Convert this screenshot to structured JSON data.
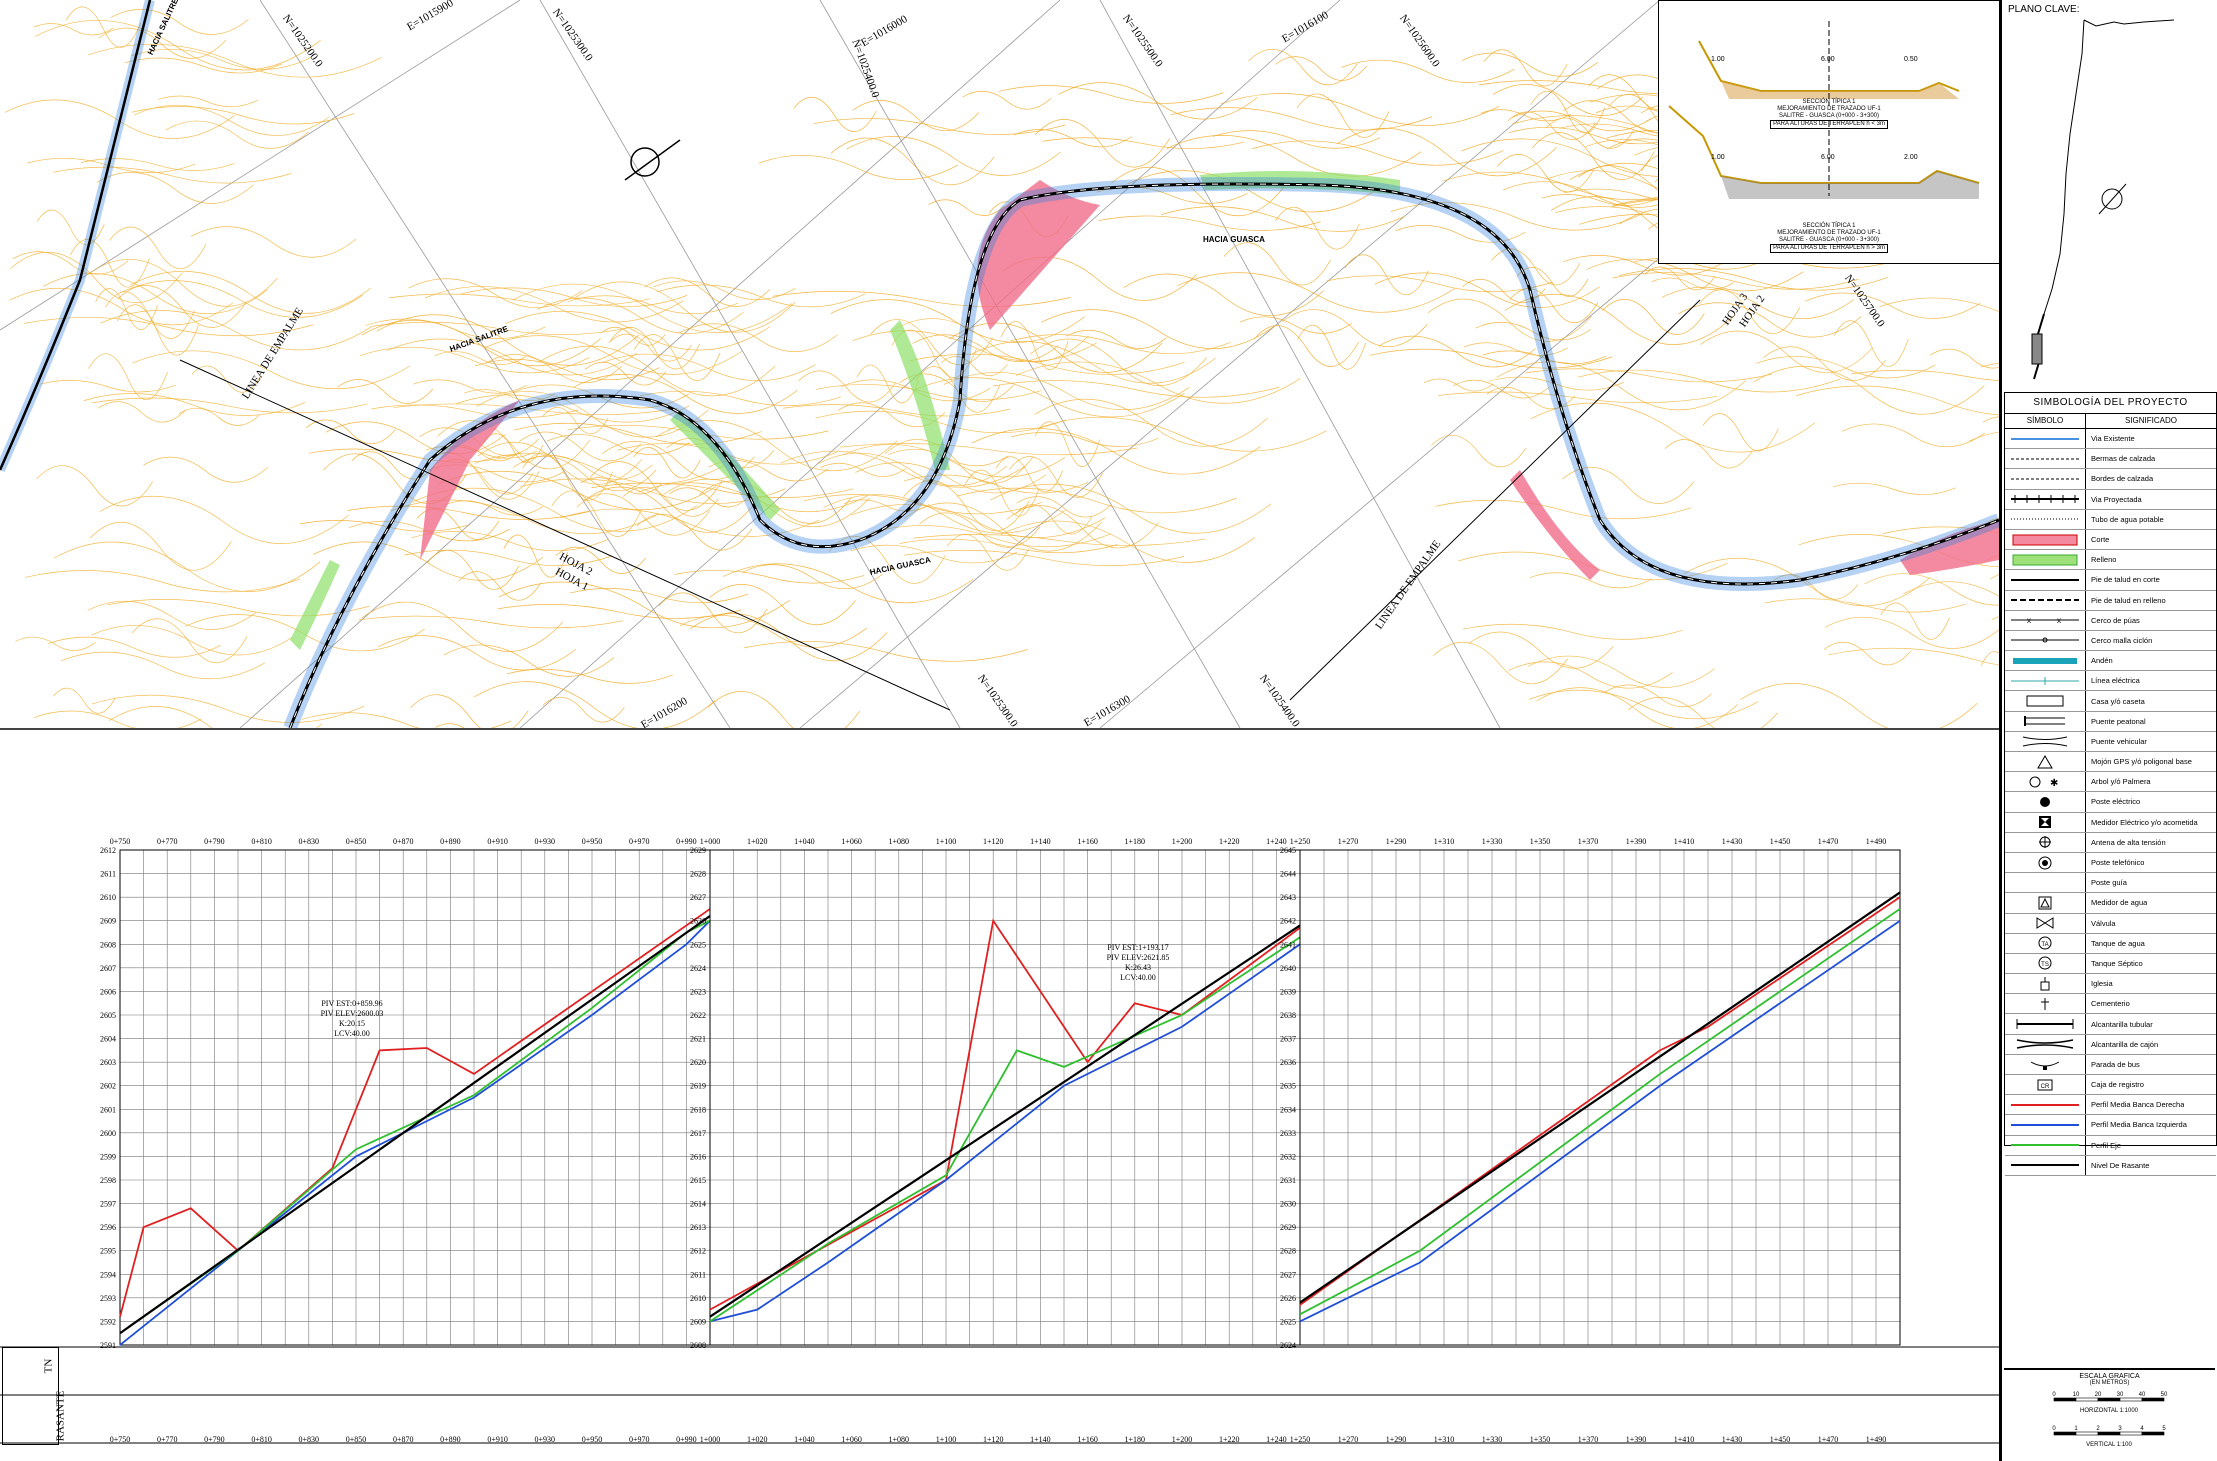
{
  "plan": {
    "coordinates": [
      "N=1025200.0",
      "E=1015900",
      "N=1025300.0",
      "E=1016000",
      "N=1025400.0",
      "N=1025500.0",
      "E=1016100",
      "N=1025600.0",
      "N=1025700.0",
      "E=1016200",
      "N=1025300.0",
      "E=1016300",
      "N=1025400.0"
    ],
    "direction_labels": [
      "HACIA SALITRE",
      "HACIA GUASCA",
      "HACIA GUASCA",
      "HACIA SALITRE"
    ],
    "sheet_labels": [
      "LINEA DE EMPALME",
      "HOJA 2",
      "HOJA 1",
      "LINEA DE EMPALME",
      "HOJA 3",
      "HOJA 2"
    ]
  },
  "sections": {
    "sec1_caption": [
      "SECCIÓN TÍPICA 1",
      "MEJORAMIENTO DE TRAZADO UF-1",
      "SALITRE - GUASCA (0+000 - 3+300)",
      "PARA ALTURAS DE TERRAPLEN h < 3m"
    ],
    "sec2_caption": [
      "SECCIÓN TÍPICA 1",
      "MEJORAMIENTO DE TRAZADO UF-1",
      "SALITRE - GUASCA (0+000 - 3+300)",
      "PARA ALTURAS DE TERRAPLEN h > 3m"
    ],
    "dims1": [
      "1.00",
      "6.00",
      "0.50"
    ],
    "dims2": [
      "1.00",
      "6.00",
      "2.00"
    ]
  },
  "sidebar": {
    "plano_clave": "PLANO CLAVE:",
    "legend_title": "SIMBOLOGÍA DEL PROYECTO",
    "col_symbol": "SÍMBOLO",
    "col_meaning": "SIGNIFICADO",
    "items": [
      {
        "label": "Via Existente",
        "sym": "line-blue"
      },
      {
        "label": "Bermas de calzada",
        "sym": "dash"
      },
      {
        "label": "Bordes de calzada",
        "sym": "dash"
      },
      {
        "label": "Via Proyectada",
        "sym": "rail"
      },
      {
        "label": "Tubo de agua potable",
        "sym": "dots"
      },
      {
        "label": "Corte",
        "sym": "corte"
      },
      {
        "label": "Relleno",
        "sym": "relleno"
      },
      {
        "label": "Pie de talud en corte",
        "sym": "line-black"
      },
      {
        "label": "Pie de talud en relleno",
        "sym": "dash-thick"
      },
      {
        "label": "Cerco de púas",
        "sym": "xline"
      },
      {
        "label": "Cerco malla ciclón",
        "sym": "oline"
      },
      {
        "label": "Andén",
        "sym": "anden"
      },
      {
        "label": "Línea eléctrica",
        "sym": "elec"
      },
      {
        "label": "Casa y/ó caseta",
        "sym": "rect"
      },
      {
        "label": "Puente peatonal",
        "sym": "bridge"
      },
      {
        "label": "Puente vehicular",
        "sym": "bridge2"
      },
      {
        "label": "Mojón GPS y/ó poligonal base",
        "sym": "triangle"
      },
      {
        "label": "Arbol y/ó Palmera",
        "sym": "tree"
      },
      {
        "label": "Poste eléctrico",
        "sym": "blob"
      },
      {
        "label": "Medidor Eléctrico y/o acometida",
        "sym": "meter"
      },
      {
        "label": "Antena de alta tensión",
        "sym": "antenna"
      },
      {
        "label": "Poste telefónico",
        "sym": "phone"
      },
      {
        "label": "Poste guía",
        "sym": "none"
      },
      {
        "label": "Medidor de agua",
        "sym": "water"
      },
      {
        "label": "Válvula",
        "sym": "valve"
      },
      {
        "label": "Tanque de agua",
        "sym": "TA"
      },
      {
        "label": "Tanque Séptico",
        "sym": "TS"
      },
      {
        "label": "Iglesia",
        "sym": "church"
      },
      {
        "label": "Cementerio",
        "sym": "cross"
      },
      {
        "label": "Alcantarilla tubular",
        "sym": "culvert"
      },
      {
        "label": "Alcantarilla de cajón",
        "sym": "culvert2"
      },
      {
        "label": "Parada de bus",
        "sym": "bus"
      },
      {
        "label": "Caja de registro",
        "sym": "CR"
      },
      {
        "label": "Perfil Media Banca Derecha",
        "sym": "red"
      },
      {
        "label": "Perfil Media Banca Izquierda",
        "sym": "blue"
      },
      {
        "label": "Perfil Eje",
        "sym": "green"
      },
      {
        "label": "Nivel De Rasante",
        "sym": "black"
      }
    ],
    "scale_title": "ESCALA GRAFICA",
    "scale_units": "(EN METROS)",
    "horizontal": "HORIZONTAL 1:1000",
    "vertical": "VERTICAL 1:100",
    "h_ticks": [
      "0",
      "10",
      "20",
      "30",
      "40",
      "50"
    ],
    "v_ticks": [
      "0",
      "1",
      "2",
      "3",
      "4",
      "5"
    ]
  },
  "profiles": {
    "row_labels": [
      "TN",
      "RASANTE"
    ],
    "panels": [
      {
        "x0": 0.75,
        "x1": 1.0,
        "ymin": 2591,
        "ymax": 2612
      },
      {
        "x0": 1.0,
        "x1": 1.25,
        "ymin": 2608,
        "ymax": 2629
      },
      {
        "x0": 1.25,
        "x1": 1.5,
        "ymin": 2624,
        "ymax": 2645
      }
    ],
    "pvi": [
      {
        "text": [
          "PIV EST:0+859.96",
          "PIV ELEV:2600.03",
          "K:20.15",
          "LCV:40.00"
        ]
      },
      {
        "text": [
          "PIV EST:1+193.17",
          "PIV ELEV:2621.85",
          "K:26.43",
          "LCV:40.00"
        ]
      }
    ],
    "colors": {
      "derecha": "#e02020",
      "izquierda": "#1f4fd6",
      "eje": "#2fbf2f",
      "rasante": "#000000"
    }
  },
  "chart_data": {
    "type": "line",
    "title": "",
    "xlabel": "",
    "ylabel": "",
    "series": [
      {
        "name": "Perfil Media Banca Derecha",
        "x": [
          "0+750",
          "0+760",
          "0+780",
          "0+800",
          "0+840",
          "0+860",
          "0+880",
          "0+900",
          "1+000",
          "1+100",
          "1+120",
          "1+140",
          "1+160",
          "1+180",
          "1+200",
          "1+250",
          "1+400",
          "1+420",
          "1+500"
        ],
        "values": [
          2592.2,
          2596.0,
          2596.8,
          2595.0,
          2598.5,
          2603.5,
          2603.6,
          2602.5,
          2609.5,
          2615.0,
          2626.0,
          2623.0,
          2620.0,
          2622.5,
          2622.0,
          2625.7,
          2636.5,
          2637.5,
          2643.0
        ]
      },
      {
        "name": "Perfil Media Banca Izquierda",
        "x": [
          "0+750",
          "0+800",
          "0+850",
          "0+900",
          "0+950",
          "0+990",
          "1+000",
          "1+020",
          "1+050",
          "1+100",
          "1+150",
          "1+200",
          "1+250",
          "1+300",
          "1+400",
          "1+500"
        ],
        "values": [
          2591.0,
          2595.0,
          2599.0,
          2601.5,
          2605.0,
          2608.0,
          2609.0,
          2609.5,
          2611.5,
          2615.0,
          2619.0,
          2621.5,
          2625.0,
          2627.5,
          2635.0,
          2642.0
        ]
      },
      {
        "name": "Perfil Eje",
        "x": [
          "0+750",
          "0+800",
          "0+850",
          "0+900",
          "0+950",
          "0+990",
          "1+000",
          "1+050",
          "1+100",
          "1+130",
          "1+150",
          "1+200",
          "1+250",
          "1+300",
          "1+400",
          "1+500"
        ],
        "values": [
          2591.5,
          2595.0,
          2599.3,
          2601.6,
          2605.3,
          2608.5,
          2609.0,
          2612.3,
          2615.2,
          2620.5,
          2619.8,
          2622.0,
          2625.3,
          2628.0,
          2635.5,
          2642.5
        ]
      },
      {
        "name": "Nivel De Rasante",
        "x": [
          "0+750",
          "1+000",
          "1+250",
          "1+500"
        ],
        "values": [
          2591.5,
          2609.2,
          2625.8,
          2643.2
        ]
      }
    ]
  }
}
